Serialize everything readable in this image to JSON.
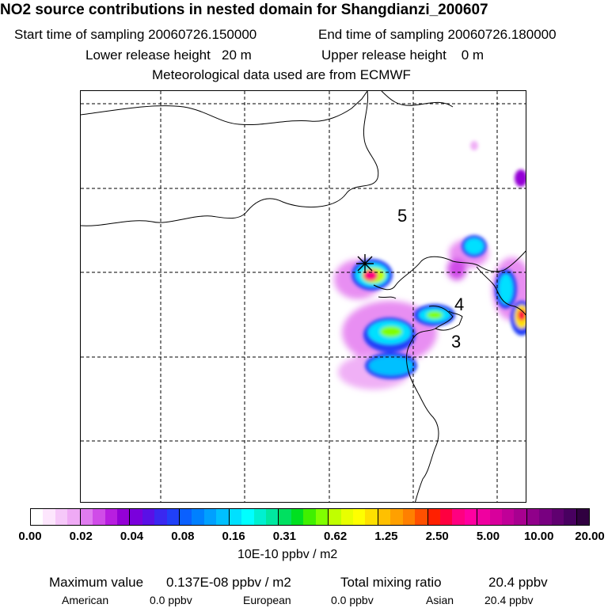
{
  "title": "NO2 source contributions in nested domain for Shangdianzi_200607",
  "sampling": {
    "start_label": "Start time of sampling",
    "start_value": "20060726.150000",
    "end_label": "End time of sampling",
    "end_value": "20060726.180000"
  },
  "release": {
    "lower_label": "Lower release height",
    "lower_value": "20 m",
    "upper_label": "Upper release height",
    "upper_value": "0 m"
  },
  "meteo": "Meteorological data used are from ECMWF",
  "map": {
    "contour_labels": [
      "5",
      "4",
      "3"
    ],
    "receptor_marker": "star"
  },
  "colorbar": {
    "unit": "10E-10 ppbv / m2",
    "ticks": [
      "0.00",
      "0.02",
      "0.04",
      "0.08",
      "0.16",
      "0.31",
      "0.62",
      "1.25",
      "2.50",
      "5.00",
      "10.00",
      "20.00"
    ],
    "colors": [
      "#ffffff",
      "#fde6fd",
      "#f6c8f9",
      "#efaaf5",
      "#e07cf0",
      "#d04ce8",
      "#b81ee0",
      "#9400d6",
      "#7a00dc",
      "#5a10e6",
      "#3a28f0",
      "#2040f8",
      "#0a60ff",
      "#0080ff",
      "#00a0ff",
      "#00c0ff",
      "#00e0ff",
      "#00ffff",
      "#00f0d0",
      "#00e8a0",
      "#00e060",
      "#00e020",
      "#40f000",
      "#80ff00",
      "#c0ff00",
      "#e8ff00",
      "#ffff00",
      "#ffe000",
      "#ffc000",
      "#ffa000",
      "#ff8000",
      "#ff5000",
      "#ff2000",
      "#ff0040",
      "#ff0080",
      "#ff00a0",
      "#f000a0",
      "#d8009c",
      "#c00098",
      "#a80090",
      "#90008a",
      "#780080",
      "#600070",
      "#480060",
      "#300040"
    ]
  },
  "summary": {
    "max_label": "Maximum value",
    "max_value": "0.137E-08 ppbv / m2",
    "total_label": "Total mixing ratio",
    "total_value": "20.4 ppbv",
    "american_label": "American",
    "american_value": "0.0 ppbv",
    "european_label": "European",
    "european_value": "0.0 ppbv",
    "asian_label": "Asian",
    "asian_value": "20.4 ppbv"
  }
}
